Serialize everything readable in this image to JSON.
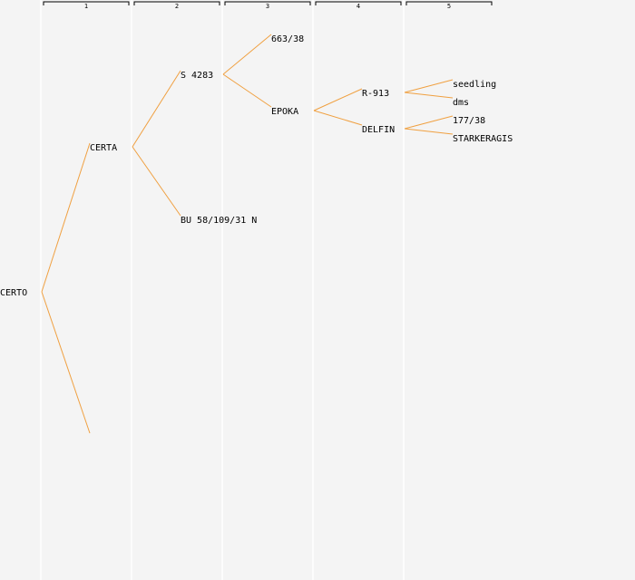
{
  "generations": [
    {
      "number": "1"
    },
    {
      "number": "2"
    },
    {
      "number": "3"
    },
    {
      "number": "4"
    },
    {
      "number": "5"
    }
  ],
  "nodes": [
    {
      "id": "n0",
      "label": "CERTO",
      "gen": 0,
      "row": 16
    },
    {
      "id": "n1",
      "label": "CERTA",
      "gen": 1,
      "row": 8
    },
    {
      "id": "n2",
      "label": "",
      "gen": 1,
      "row": 24
    },
    {
      "id": "n3",
      "label": "S 4283",
      "gen": 2,
      "row": 4
    },
    {
      "id": "n4",
      "label": "BU 58/109/31 N",
      "gen": 2,
      "row": 12
    },
    {
      "id": "n5",
      "label": "663/38",
      "gen": 3,
      "row": 2
    },
    {
      "id": "n6",
      "label": "EPOKA",
      "gen": 3,
      "row": 6
    },
    {
      "id": "n7",
      "label": "R-913",
      "gen": 4,
      "row": 5
    },
    {
      "id": "n8",
      "label": "DELFIN",
      "gen": 4,
      "row": 7
    },
    {
      "id": "n9",
      "label": "seedling",
      "gen": 5,
      "row": 4.5
    },
    {
      "id": "n10",
      "label": "dms",
      "gen": 5,
      "row": 5.5
    },
    {
      "id": "n11",
      "label": "177/38",
      "gen": 5,
      "row": 6.5
    },
    {
      "id": "n12",
      "label": "STARKERAGIS",
      "gen": 5,
      "row": 7.5
    }
  ],
  "edges": [
    {
      "from": "n0",
      "to": "n1"
    },
    {
      "from": "n0",
      "to": "n2"
    },
    {
      "from": "n1",
      "to": "n3"
    },
    {
      "from": "n1",
      "to": "n4"
    },
    {
      "from": "n3",
      "to": "n5"
    },
    {
      "from": "n3",
      "to": "n6"
    },
    {
      "from": "n6",
      "to": "n7"
    },
    {
      "from": "n6",
      "to": "n8"
    },
    {
      "from": "n7",
      "to": "n9"
    },
    {
      "from": "n7",
      "to": "n10"
    },
    {
      "from": "n8",
      "to": "n11"
    },
    {
      "from": "n8",
      "to": "n12"
    }
  ],
  "colors": {
    "background": "#f4f4f4",
    "edge": "#f0a040",
    "column_divider": "#ffffff",
    "bracket": "#000000",
    "text": "#000000"
  }
}
